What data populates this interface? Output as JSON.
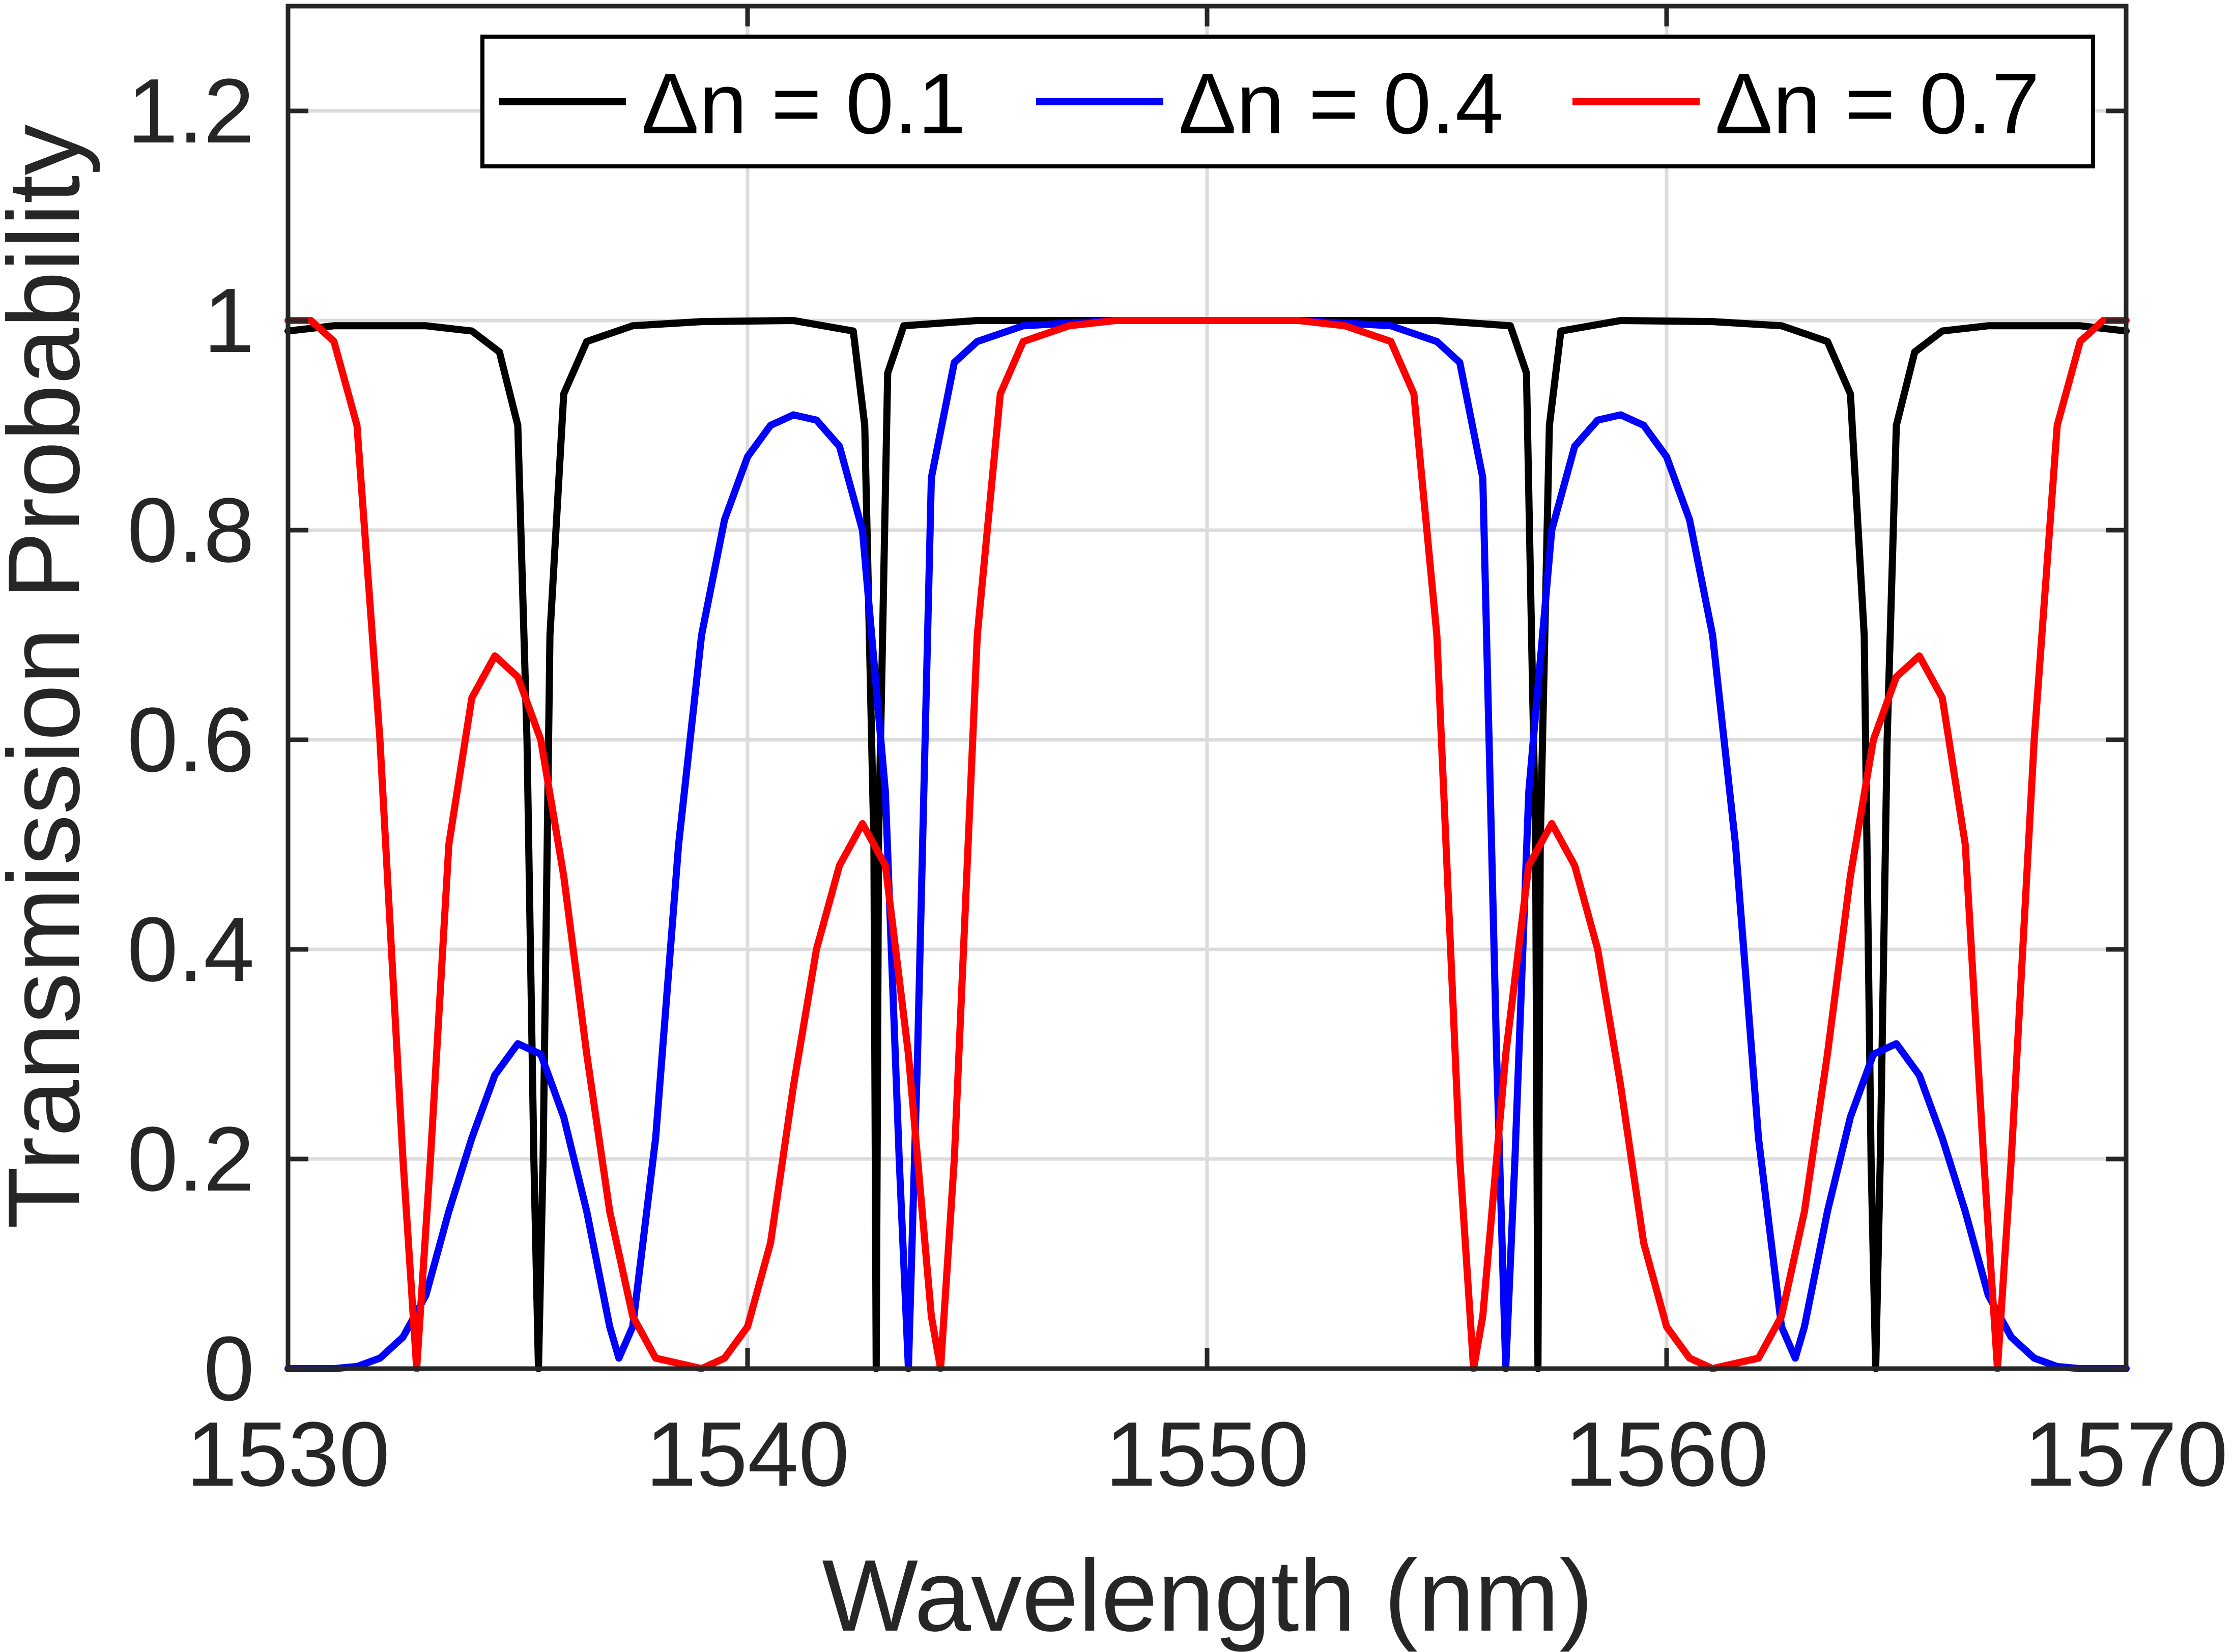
{
  "chart_data": {
    "type": "line",
    "title": "",
    "xlabel": "Wavelength (nm)",
    "ylabel": "Transmission Probability",
    "xlim": [
      1530,
      1570
    ],
    "ylim": [
      0,
      1.3
    ],
    "xticks": [
      1530,
      1540,
      1550,
      1560,
      1570
    ],
    "xtick_labels": [
      "1530",
      "1540",
      "1550",
      "1560",
      "1570"
    ],
    "yticks": [
      0,
      0.2,
      0.4,
      0.6,
      0.8,
      1,
      1.2
    ],
    "ytick_labels": [
      "0",
      "0.2",
      "0.4",
      "0.6",
      "0.8",
      "1",
      "1.2"
    ],
    "grid": true,
    "legend_position": "top-right",
    "legend_orientation": "horizontal",
    "series": [
      {
        "name": "Δn = 0.1",
        "color": "#000000",
        "points": [
          [
            1530,
            0.99
          ],
          [
            1531,
            0.995
          ],
          [
            1532,
            0.995
          ],
          [
            1533,
            0.995
          ],
          [
            1534,
            0.99
          ],
          [
            1534.6,
            0.97
          ],
          [
            1535,
            0.9
          ],
          [
            1535.2,
            0.6
          ],
          [
            1535.35,
            0.2
          ],
          [
            1535.45,
            0.0
          ],
          [
            1535.55,
            0.2
          ],
          [
            1535.7,
            0.7
          ],
          [
            1536,
            0.93
          ],
          [
            1536.5,
            0.98
          ],
          [
            1537.5,
            0.995
          ],
          [
            1539,
            0.999
          ],
          [
            1541,
            1.0
          ],
          [
            1542.3,
            0.99
          ],
          [
            1542.55,
            0.9
          ],
          [
            1542.75,
            0.5
          ],
          [
            1542.8,
            0.0
          ],
          [
            1542.85,
            0.5
          ],
          [
            1543.05,
            0.95
          ],
          [
            1543.4,
            0.995
          ],
          [
            1545,
            1.0
          ],
          [
            1550,
            1.0
          ],
          [
            1555,
            1.0
          ],
          [
            1556.6,
            0.995
          ],
          [
            1556.95,
            0.95
          ],
          [
            1557.15,
            0.5
          ],
          [
            1557.2,
            0.0
          ],
          [
            1557.25,
            0.5
          ],
          [
            1557.45,
            0.9
          ],
          [
            1557.7,
            0.99
          ],
          [
            1559,
            1.0
          ],
          [
            1561,
            0.999
          ],
          [
            1562.5,
            0.995
          ],
          [
            1563.5,
            0.98
          ],
          [
            1564,
            0.93
          ],
          [
            1564.3,
            0.7
          ],
          [
            1564.45,
            0.2
          ],
          [
            1564.55,
            0.0
          ],
          [
            1564.65,
            0.2
          ],
          [
            1564.8,
            0.6
          ],
          [
            1565,
            0.9
          ],
          [
            1565.4,
            0.97
          ],
          [
            1566,
            0.99
          ],
          [
            1567,
            0.995
          ],
          [
            1568,
            0.995
          ],
          [
            1569,
            0.995
          ],
          [
            1570,
            0.99
          ]
        ]
      },
      {
        "name": "Δn = 0.4",
        "color": "#0000ff",
        "points": [
          [
            1530,
            0.0
          ],
          [
            1531,
            0.0
          ],
          [
            1531.5,
            0.002
          ],
          [
            1532,
            0.01
          ],
          [
            1532.5,
            0.03
          ],
          [
            1533,
            0.07
          ],
          [
            1533.5,
            0.15
          ],
          [
            1534,
            0.22
          ],
          [
            1534.5,
            0.28
          ],
          [
            1535,
            0.31
          ],
          [
            1535.5,
            0.3
          ],
          [
            1536,
            0.24
          ],
          [
            1536.5,
            0.15
          ],
          [
            1537,
            0.04
          ],
          [
            1537.2,
            0.01
          ],
          [
            1537.5,
            0.04
          ],
          [
            1538,
            0.22
          ],
          [
            1538.5,
            0.5
          ],
          [
            1539,
            0.7
          ],
          [
            1539.5,
            0.81
          ],
          [
            1540,
            0.87
          ],
          [
            1540.5,
            0.9
          ],
          [
            1541,
            0.91
          ],
          [
            1541.5,
            0.905
          ],
          [
            1542,
            0.88
          ],
          [
            1542.5,
            0.8
          ],
          [
            1543,
            0.55
          ],
          [
            1543.3,
            0.2
          ],
          [
            1543.5,
            0.0
          ],
          [
            1543.7,
            0.3
          ],
          [
            1544,
            0.85
          ],
          [
            1544.5,
            0.96
          ],
          [
            1545,
            0.98
          ],
          [
            1546,
            0.995
          ],
          [
            1548,
            1.0
          ],
          [
            1550,
            1.0
          ],
          [
            1552,
            1.0
          ],
          [
            1554,
            0.995
          ],
          [
            1555,
            0.98
          ],
          [
            1555.5,
            0.96
          ],
          [
            1556,
            0.85
          ],
          [
            1556.3,
            0.3
          ],
          [
            1556.5,
            0.0
          ],
          [
            1556.7,
            0.2
          ],
          [
            1557,
            0.55
          ],
          [
            1557.5,
            0.8
          ],
          [
            1558,
            0.88
          ],
          [
            1558.5,
            0.905
          ],
          [
            1559,
            0.91
          ],
          [
            1559.5,
            0.9
          ],
          [
            1560,
            0.87
          ],
          [
            1560.5,
            0.81
          ],
          [
            1561,
            0.7
          ],
          [
            1561.5,
            0.5
          ],
          [
            1562,
            0.22
          ],
          [
            1562.5,
            0.04
          ],
          [
            1562.8,
            0.01
          ],
          [
            1563,
            0.04
          ],
          [
            1563.5,
            0.15
          ],
          [
            1564,
            0.24
          ],
          [
            1564.5,
            0.3
          ],
          [
            1565,
            0.31
          ],
          [
            1565.5,
            0.28
          ],
          [
            1566,
            0.22
          ],
          [
            1566.5,
            0.15
          ],
          [
            1567,
            0.07
          ],
          [
            1567.5,
            0.03
          ],
          [
            1568,
            0.01
          ],
          [
            1568.5,
            0.002
          ],
          [
            1569,
            0.0
          ],
          [
            1570,
            0.0
          ]
        ]
      },
      {
        "name": "Δn = 0.7",
        "color": "#ff0000",
        "points": [
          [
            1530,
            1.0
          ],
          [
            1530.5,
            1.0
          ],
          [
            1531,
            0.98
          ],
          [
            1531.5,
            0.9
          ],
          [
            1532,
            0.6
          ],
          [
            1532.5,
            0.2
          ],
          [
            1532.8,
            0.0
          ],
          [
            1533.1,
            0.2
          ],
          [
            1533.5,
            0.5
          ],
          [
            1534,
            0.64
          ],
          [
            1534.5,
            0.68
          ],
          [
            1535,
            0.66
          ],
          [
            1535.5,
            0.6
          ],
          [
            1536,
            0.47
          ],
          [
            1536.5,
            0.3
          ],
          [
            1537,
            0.15
          ],
          [
            1537.5,
            0.05
          ],
          [
            1538,
            0.01
          ],
          [
            1539,
            0.0
          ],
          [
            1539.5,
            0.01
          ],
          [
            1540,
            0.04
          ],
          [
            1540.5,
            0.12
          ],
          [
            1541,
            0.27
          ],
          [
            1541.5,
            0.4
          ],
          [
            1542,
            0.48
          ],
          [
            1542.5,
            0.52
          ],
          [
            1543,
            0.48
          ],
          [
            1543.5,
            0.3
          ],
          [
            1544,
            0.05
          ],
          [
            1544.2,
            0.0
          ],
          [
            1544.5,
            0.2
          ],
          [
            1545,
            0.7
          ],
          [
            1545.5,
            0.93
          ],
          [
            1546,
            0.98
          ],
          [
            1547,
            0.995
          ],
          [
            1548,
            1.0
          ],
          [
            1550,
            1.0
          ],
          [
            1552,
            1.0
          ],
          [
            1553,
            0.995
          ],
          [
            1554,
            0.98
          ],
          [
            1554.5,
            0.93
          ],
          [
            1555,
            0.7
          ],
          [
            1555.5,
            0.2
          ],
          [
            1555.8,
            0.0
          ],
          [
            1556,
            0.05
          ],
          [
            1556.5,
            0.3
          ],
          [
            1557,
            0.48
          ],
          [
            1557.5,
            0.52
          ],
          [
            1558,
            0.48
          ],
          [
            1558.5,
            0.4
          ],
          [
            1559,
            0.27
          ],
          [
            1559.5,
            0.12
          ],
          [
            1560,
            0.04
          ],
          [
            1560.5,
            0.01
          ],
          [
            1561,
            0.0
          ],
          [
            1562,
            0.01
          ],
          [
            1562.5,
            0.05
          ],
          [
            1563,
            0.15
          ],
          [
            1563.5,
            0.3
          ],
          [
            1564,
            0.47
          ],
          [
            1564.5,
            0.6
          ],
          [
            1565,
            0.66
          ],
          [
            1565.5,
            0.68
          ],
          [
            1566,
            0.64
          ],
          [
            1566.5,
            0.5
          ],
          [
            1566.9,
            0.2
          ],
          [
            1567.2,
            0.0
          ],
          [
            1567.5,
            0.2
          ],
          [
            1568,
            0.6
          ],
          [
            1568.5,
            0.9
          ],
          [
            1569,
            0.98
          ],
          [
            1569.5,
            1.0
          ],
          [
            1570,
            1.0
          ]
        ]
      }
    ]
  }
}
